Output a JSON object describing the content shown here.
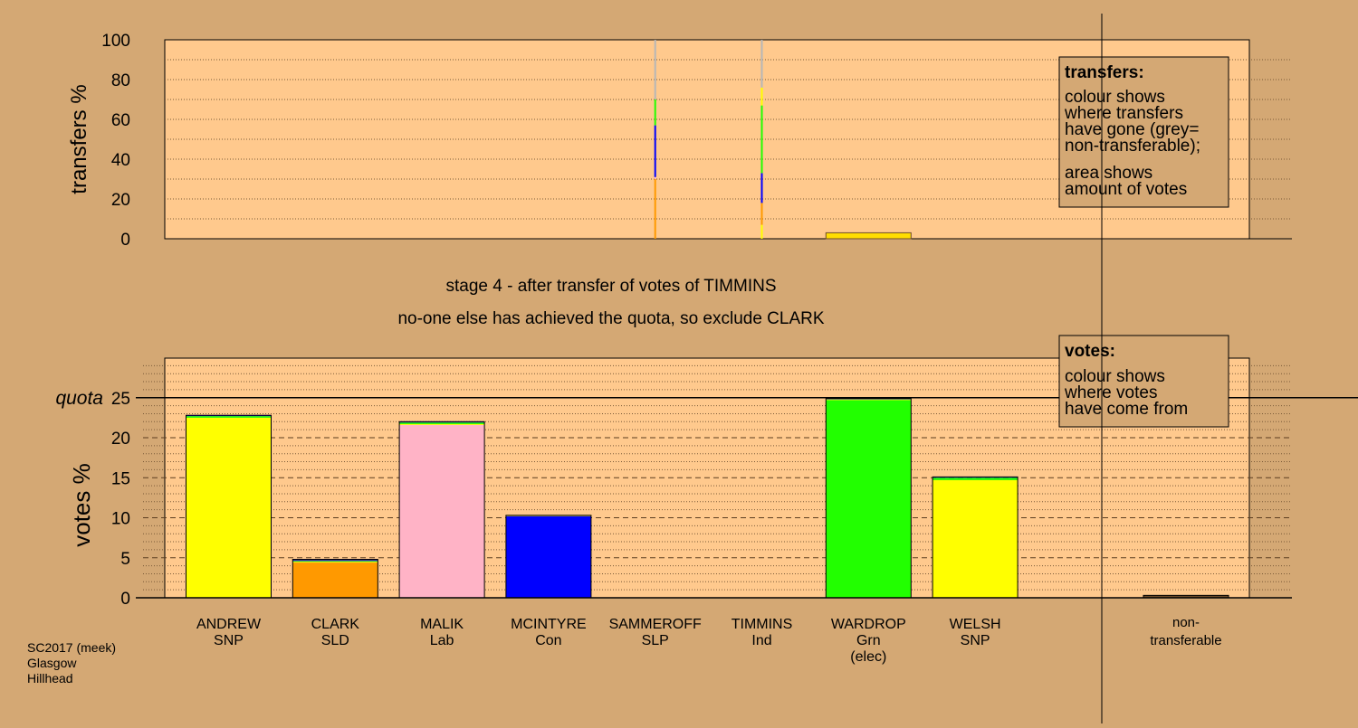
{
  "colors": {
    "background": "#d4a874",
    "plot_background": "#ffc98d",
    "quota_line": "#000000"
  },
  "header": {
    "stage_line": "stage 4 - after transfer of votes of TIMMINS",
    "action_line": "no-one else has achieved the quota, so exclude CLARK"
  },
  "footer": {
    "line1": "SC2017 (meek)",
    "line2": "Glasgow",
    "line3": "Hillhead"
  },
  "chart_data": [
    {
      "type": "bar",
      "name": "transfers",
      "ylabel": "transfers %",
      "ylim": [
        0,
        100
      ],
      "yticks": [
        0,
        20,
        40,
        60,
        80,
        100
      ],
      "legend": {
        "title": "transfers:",
        "lines": [
          "colour shows",
          "where transfers",
          "have gone (grey=",
          "non-transferable);",
          "area shows",
          "amount of votes"
        ],
        "placement": "top-right"
      },
      "transfer_columns": [
        {
          "candidate": "SAMMEROFF",
          "segments": [
            {
              "color": "#ff9900",
              "from": 0,
              "to": 30
            },
            {
              "color": "#ffb3c6",
              "from": 30,
              "to": 31
            },
            {
              "color": "#0000ff",
              "from": 31,
              "to": 57
            },
            {
              "color": "#22ff00",
              "from": 57,
              "to": 70
            },
            {
              "color": "#b7b7b7",
              "from": 70,
              "to": 100
            }
          ]
        },
        {
          "candidate": "TIMMINS",
          "segments": [
            {
              "color": "#ffff00",
              "from": 0,
              "to": 7
            },
            {
              "color": "#ff9900",
              "from": 7,
              "to": 18
            },
            {
              "color": "#0000ff",
              "from": 18,
              "to": 33
            },
            {
              "color": "#22ff00",
              "from": 33,
              "to": 67
            },
            {
              "color": "#ffff00",
              "from": 67,
              "to": 76
            },
            {
              "color": "#b7b7b7",
              "from": 76,
              "to": 100
            }
          ]
        }
      ],
      "transfer_band": {
        "candidate": "WARDROP",
        "color": "#ffdd00",
        "from": 0,
        "to": 3
      }
    },
    {
      "type": "bar",
      "name": "votes",
      "ylabel": "votes %",
      "ylim": [
        0,
        25
      ],
      "yticks": [
        0,
        5,
        10,
        15,
        20,
        25
      ],
      "quota": 25,
      "quota_label": "quota",
      "legend": {
        "title": "votes:",
        "lines": [
          "colour shows",
          "where votes",
          "have come from"
        ],
        "placement": "top-right"
      },
      "categories": [
        {
          "name": "ANDREW",
          "party": "SNP",
          "extra": "",
          "value": 22.8,
          "color": "#ffff00",
          "segments": [
            {
              "color": "#ffff00",
              "value": 22.5
            },
            {
              "color": "#22ff00",
              "value": 0.2
            },
            {
              "color": "#0000ff",
              "value": 0.1
            }
          ]
        },
        {
          "name": "CLARK",
          "party": "SLD",
          "extra": "",
          "value": 4.8,
          "color": "#ff9900",
          "segments": [
            {
              "color": "#ff9900",
              "value": 4.4
            },
            {
              "color": "#ffff00",
              "value": 0.1
            },
            {
              "color": "#22ff00",
              "value": 0.1
            },
            {
              "color": "#0000ff",
              "value": 0.1
            },
            {
              "color": "#6d4c2a",
              "value": 0.1
            }
          ]
        },
        {
          "name": "MALIK",
          "party": "Lab",
          "extra": "",
          "value": 22.0,
          "color": "#ffb3c6",
          "segments": [
            {
              "color": "#ffb3c6",
              "value": 21.6
            },
            {
              "color": "#ffff00",
              "value": 0.1
            },
            {
              "color": "#22ff00",
              "value": 0.2
            },
            {
              "color": "#0000ff",
              "value": 0.1
            }
          ]
        },
        {
          "name": "MCINTYRE",
          "party": "Con",
          "extra": "",
          "value": 10.3,
          "color": "#0000ff",
          "segments": [
            {
              "color": "#0000ff",
              "value": 10.2
            },
            {
              "color": "#ffff00",
              "value": 0.1
            }
          ]
        },
        {
          "name": "SAMMEROFF",
          "party": "SLP",
          "extra": "",
          "value": 0,
          "color": "#ff0000",
          "segments": []
        },
        {
          "name": "TIMMINS",
          "party": "Ind",
          "extra": "",
          "value": 0,
          "color": "#999999",
          "segments": []
        },
        {
          "name": "WARDROP",
          "party": "Grn",
          "extra": "(elec)",
          "value": 24.9,
          "color": "#22ff00",
          "segments": [
            {
              "color": "#22ff00",
              "value": 24.7
            },
            {
              "color": "#ffff00",
              "value": 0.1
            },
            {
              "color": "#0000ff",
              "value": 0.1
            }
          ]
        },
        {
          "name": "WELSH",
          "party": "SNP",
          "extra": "",
          "value": 15.1,
          "color": "#ffff00",
          "segments": [
            {
              "color": "#ffff00",
              "value": 14.7
            },
            {
              "color": "#22ff00",
              "value": 0.3
            },
            {
              "color": "#0000ff",
              "value": 0.1
            }
          ]
        }
      ],
      "non_transferable": {
        "label1": "non-",
        "label2": "transferable",
        "value": 0.3
      }
    }
  ]
}
